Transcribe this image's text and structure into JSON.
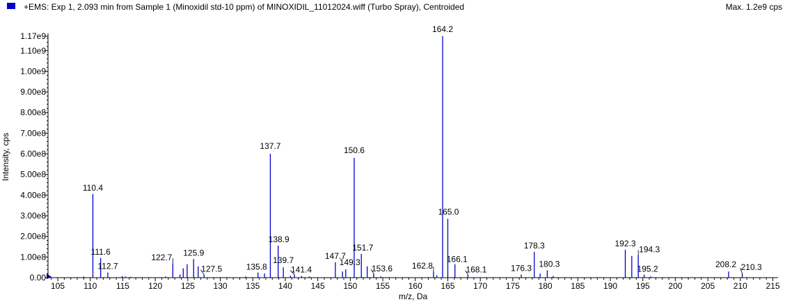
{
  "header": {
    "title": "+EMS: Exp 1, 2.093 min from Sample 1 (Minoxidil std-10 ppm) of MINOXIDIL_11012024.wiff (Turbo Spray), Centroided",
    "max_label": "Max. 1.2e9 cps",
    "swatch_color": "#0000cc"
  },
  "chart_data": {
    "type": "bar",
    "xlabel": "m/z, Da",
    "ylabel": "Intensity, cps",
    "xlim": [
      103.5,
      215.8
    ],
    "ylim": [
      0,
      1170000000.0
    ],
    "grid": false,
    "bar_color": "#0000cc",
    "x_ticks": [
      105,
      110,
      115,
      120,
      125,
      130,
      135,
      140,
      145,
      150,
      155,
      160,
      165,
      170,
      175,
      180,
      185,
      190,
      195,
      200,
      205,
      210,
      215
    ],
    "x_tick_labels": [
      "105",
      "110",
      "115",
      "120",
      "125",
      "130",
      "135",
      "140",
      "145",
      "150",
      "155",
      "160",
      "165",
      "170",
      "175",
      "180",
      "185",
      "190",
      "195",
      "200",
      "205",
      "210",
      "215"
    ],
    "y_ticks": [
      0,
      100000000.0,
      200000000.0,
      300000000.0,
      400000000.0,
      500000000.0,
      600000000.0,
      700000000.0,
      800000000.0,
      900000000.0,
      1000000000.0,
      1100000000.0,
      1170000000.0
    ],
    "y_tick_labels": [
      "0.00",
      "1.00e8",
      "2.00e8",
      "3.00e8",
      "4.00e8",
      "5.00e8",
      "6.00e8",
      "7.00e8",
      "8.00e8",
      "9.00e8",
      "1.00e9",
      "1.10e9",
      "1.17e9"
    ],
    "peaks": [
      {
        "mz": 110.4,
        "intensity": 405000000.0,
        "label": "110.4"
      },
      {
        "mz": 111.6,
        "intensity": 95000000.0,
        "label": "111.6"
      },
      {
        "mz": 112.7,
        "intensity": 25000000.0,
        "label": "112.7"
      },
      {
        "mz": 122.7,
        "intensity": 70000000.0,
        "label": "122.7"
      },
      {
        "mz": 125.9,
        "intensity": 90000000.0,
        "label": "125.9"
      },
      {
        "mz": 127.5,
        "intensity": 15000000.0,
        "label": "127.5"
      },
      {
        "mz": 135.8,
        "intensity": 25000000.0,
        "label": "135.8"
      },
      {
        "mz": 137.7,
        "intensity": 600000000.0,
        "label": "137.7"
      },
      {
        "mz": 138.9,
        "intensity": 155000000.0,
        "label": "138.9"
      },
      {
        "mz": 139.7,
        "intensity": 50000000.0,
        "label": "139.7"
      },
      {
        "mz": 141.4,
        "intensity": 15000000.0,
        "label": "141.4"
      },
      {
        "mz": 147.7,
        "intensity": 75000000.0,
        "label": "147.7"
      },
      {
        "mz": 149.3,
        "intensity": 40000000.0,
        "label": "149.3"
      },
      {
        "mz": 150.6,
        "intensity": 580000000.0,
        "label": "150.6"
      },
      {
        "mz": 151.7,
        "intensity": 115000000.0,
        "label": "151.7"
      },
      {
        "mz": 153.6,
        "intensity": 20000000.0,
        "label": "153.6"
      },
      {
        "mz": 162.8,
        "intensity": 30000000.0,
        "label": "162.8"
      },
      {
        "mz": 164.2,
        "intensity": 1170000000.0,
        "label": "164.2"
      },
      {
        "mz": 165.0,
        "intensity": 285000000.0,
        "label": "165.0"
      },
      {
        "mz": 166.1,
        "intensity": 65000000.0,
        "label": "166.1"
      },
      {
        "mz": 168.1,
        "intensity": 15000000.0,
        "label": "168.1"
      },
      {
        "mz": 176.3,
        "intensity": 15000000.0,
        "label": "176.3"
      },
      {
        "mz": 178.3,
        "intensity": 125000000.0,
        "label": "178.3"
      },
      {
        "mz": 180.3,
        "intensity": 35000000.0,
        "label": "180.3"
      },
      {
        "mz": 192.3,
        "intensity": 135000000.0,
        "label": "192.3"
      },
      {
        "mz": 194.3,
        "intensity": 110000000.0,
        "label": "194.3"
      },
      {
        "mz": 195.2,
        "intensity": 15000000.0,
        "label": "195.2"
      },
      {
        "mz": 208.2,
        "intensity": 30000000.0,
        "label": "208.2"
      },
      {
        "mz": 210.3,
        "intensity": 20000000.0,
        "label": "210.3"
      },
      {
        "mz": 109.0,
        "intensity": 5000000.0
      },
      {
        "mz": 114.9,
        "intensity": 8000000.0
      },
      {
        "mz": 115.4,
        "intensity": 6000000.0
      },
      {
        "mz": 116.2,
        "intensity": 4000000.0
      },
      {
        "mz": 121.6,
        "intensity": 6000000.0
      },
      {
        "mz": 123.8,
        "intensity": 15000000.0
      },
      {
        "mz": 124.3,
        "intensity": 45000000.0
      },
      {
        "mz": 124.9,
        "intensity": 65000000.0
      },
      {
        "mz": 126.6,
        "intensity": 55000000.0
      },
      {
        "mz": 133.9,
        "intensity": 6000000.0
      },
      {
        "mz": 136.8,
        "intensity": 20000000.0
      },
      {
        "mz": 140.8,
        "intensity": 10000000.0
      },
      {
        "mz": 142.5,
        "intensity": 8000000.0
      },
      {
        "mz": 143.7,
        "intensity": 6000000.0
      },
      {
        "mz": 148.8,
        "intensity": 30000000.0
      },
      {
        "mz": 152.6,
        "intensity": 55000000.0
      },
      {
        "mz": 154.7,
        "intensity": 6000000.0
      },
      {
        "mz": 163.3,
        "intensity": 12000000.0
      },
      {
        "mz": 179.2,
        "intensity": 20000000.0
      },
      {
        "mz": 181.2,
        "intensity": 8000000.0
      },
      {
        "mz": 193.3,
        "intensity": 105000000.0
      },
      {
        "mz": 196.2,
        "intensity": 6000000.0
      }
    ]
  }
}
